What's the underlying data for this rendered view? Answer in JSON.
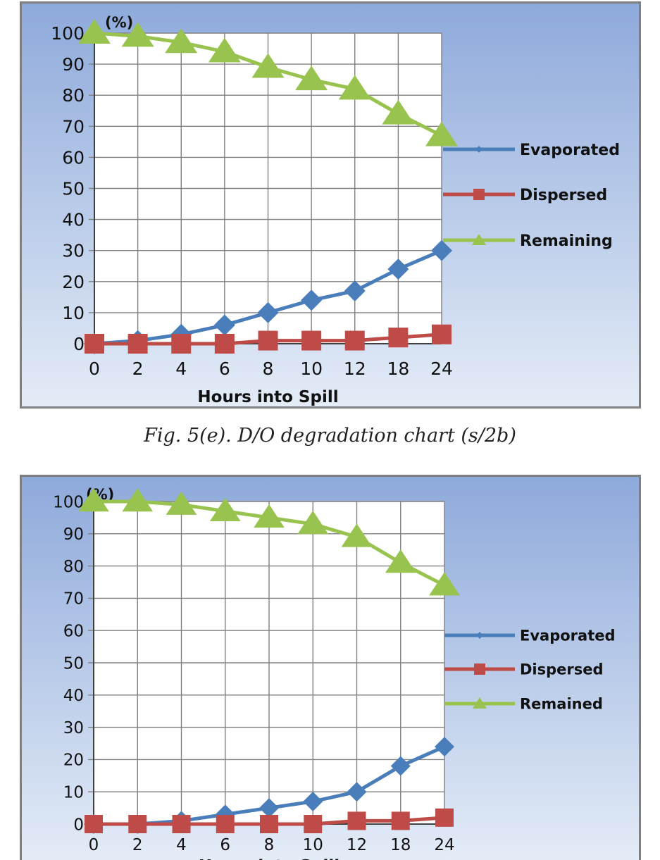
{
  "caption": "Fig. 5(e). D/O degradation chart (s/2b)",
  "colors": {
    "evaporated": "#4a7ebb",
    "dispersed": "#be4b48",
    "remaining": "#98c34f",
    "grid": "#808080",
    "background_top": "#8eaadb",
    "background_bottom": "#e4ecf7"
  },
  "chart_data": [
    {
      "type": "line",
      "title": "",
      "ylabel": "(%)",
      "xlabel": "Hours into Spill",
      "categories": [
        "0",
        "2",
        "4",
        "6",
        "8",
        "10",
        "12",
        "18",
        "24"
      ],
      "ylim": [
        0,
        100
      ],
      "yticks": [
        0,
        10,
        20,
        30,
        40,
        50,
        60,
        70,
        80,
        90,
        100
      ],
      "grid": true,
      "legend_position": "right",
      "series": [
        {
          "name": "Evaporated",
          "marker": "diamond",
          "values": [
            0,
            1,
            3,
            6,
            10,
            14,
            17,
            24,
            30
          ]
        },
        {
          "name": "Dispersed",
          "marker": "square",
          "values": [
            0,
            0,
            0,
            0,
            1,
            1,
            1,
            2,
            3
          ]
        },
        {
          "name": "Remaining",
          "marker": "triangle",
          "values": [
            100,
            99,
            97,
            94,
            89,
            85,
            82,
            74,
            67
          ]
        }
      ]
    },
    {
      "type": "line",
      "title": "",
      "ylabel": "(%)",
      "xlabel": "Hours into Spill",
      "categories": [
        "0",
        "2",
        "4",
        "6",
        "8",
        "10",
        "12",
        "18",
        "24"
      ],
      "ylim": [
        0,
        100
      ],
      "yticks": [
        0,
        10,
        20,
        30,
        40,
        50,
        60,
        70,
        80,
        90,
        100
      ],
      "grid": true,
      "legend_position": "right",
      "series": [
        {
          "name": "Evaporated",
          "marker": "diamond",
          "values": [
            0,
            0,
            1,
            3,
            5,
            7,
            10,
            18,
            24
          ]
        },
        {
          "name": "Dispersed",
          "marker": "square",
          "values": [
            0,
            0,
            0,
            0,
            0,
            0,
            1,
            1,
            2
          ]
        },
        {
          "name": "Remained",
          "marker": "triangle",
          "values": [
            100,
            100,
            99,
            97,
            95,
            93,
            89,
            81,
            74
          ]
        }
      ]
    }
  ]
}
